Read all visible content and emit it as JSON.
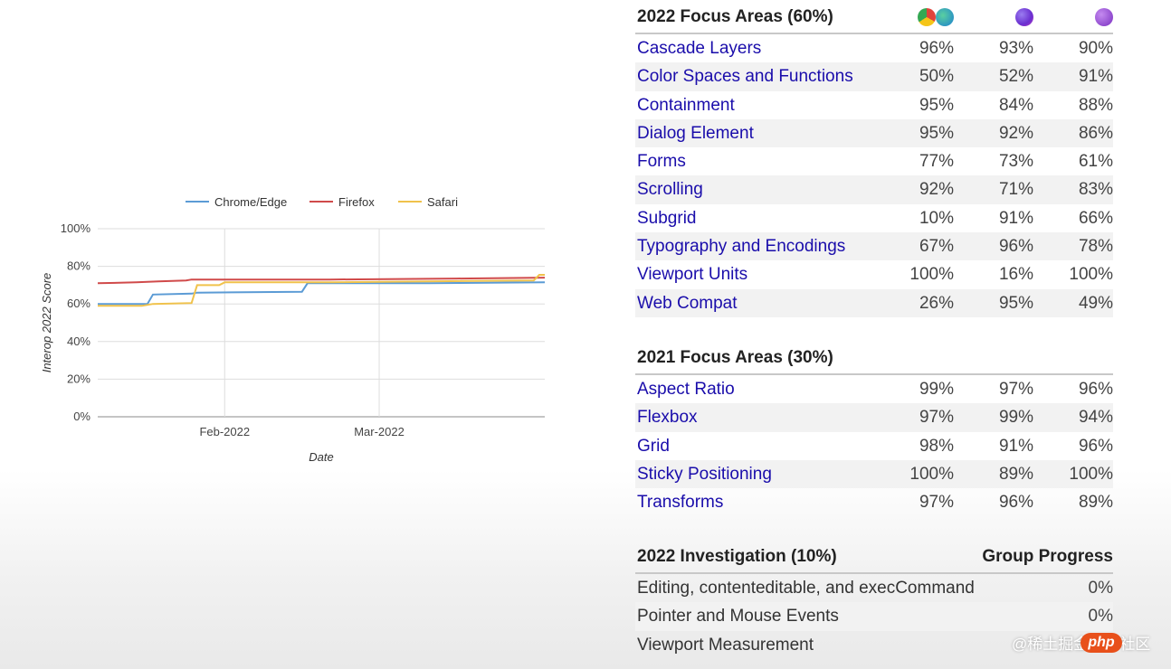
{
  "chart_data": {
    "type": "line",
    "xlabel": "Date",
    "ylabel": "Interop 2022 Score",
    "x_ticks": [
      "Feb-2022",
      "Mar-2022"
    ],
    "y_ticks": [
      "0%",
      "20%",
      "40%",
      "60%",
      "80%",
      "100%"
    ],
    "ylim": [
      0,
      100
    ],
    "grid": true,
    "legend_position": "top",
    "series": [
      {
        "name": "Chrome/Edge",
        "color": "#5b9bd5",
        "points": [
          [
            "2022-01-09",
            60
          ],
          [
            "2022-01-18",
            60
          ],
          [
            "2022-01-19",
            65
          ],
          [
            "2022-01-26",
            65.5
          ],
          [
            "2022-01-27",
            66
          ],
          [
            "2022-02-15",
            66.5
          ],
          [
            "2022-02-16",
            71
          ],
          [
            "2022-03-10",
            71
          ],
          [
            "2022-03-31",
            71.5
          ]
        ]
      },
      {
        "name": "Firefox",
        "color": "#d04a4a",
        "points": [
          [
            "2022-01-09",
            71
          ],
          [
            "2022-01-16",
            71.5
          ],
          [
            "2022-01-20",
            72
          ],
          [
            "2022-01-25",
            72.5
          ],
          [
            "2022-01-26",
            73
          ],
          [
            "2022-02-20",
            73
          ],
          [
            "2022-03-15",
            73.5
          ],
          [
            "2022-03-31",
            74
          ]
        ]
      },
      {
        "name": "Safari",
        "color": "#f0c24b",
        "points": [
          [
            "2022-01-09",
            59
          ],
          [
            "2022-01-17",
            59
          ],
          [
            "2022-01-19",
            60
          ],
          [
            "2022-01-26",
            60.5
          ],
          [
            "2022-01-27",
            70
          ],
          [
            "2022-01-31",
            70
          ],
          [
            "2022-02-01",
            71.5
          ],
          [
            "2022-02-20",
            71.5
          ],
          [
            "2022-03-10",
            72
          ],
          [
            "2022-03-29",
            72.5
          ],
          [
            "2022-03-30",
            75.5
          ],
          [
            "2022-03-31",
            75.5
          ]
        ]
      }
    ]
  },
  "sections": [
    {
      "title": "2022 Focus Areas (60%)",
      "rows": [
        {
          "name": "Cascade Layers",
          "v": [
            "96%",
            "93%",
            "90%"
          ]
        },
        {
          "name": "Color Spaces and Functions",
          "v": [
            "50%",
            "52%",
            "91%"
          ]
        },
        {
          "name": "Containment",
          "v": [
            "95%",
            "84%",
            "88%"
          ]
        },
        {
          "name": "Dialog Element",
          "v": [
            "95%",
            "92%",
            "86%"
          ]
        },
        {
          "name": "Forms",
          "v": [
            "77%",
            "73%",
            "61%"
          ]
        },
        {
          "name": "Scrolling",
          "v": [
            "92%",
            "71%",
            "83%"
          ]
        },
        {
          "name": "Subgrid",
          "v": [
            "10%",
            "91%",
            "66%"
          ]
        },
        {
          "name": "Typography and Encodings",
          "v": [
            "67%",
            "96%",
            "78%"
          ]
        },
        {
          "name": "Viewport Units",
          "v": [
            "100%",
            "16%",
            "100%"
          ]
        },
        {
          "name": "Web Compat",
          "v": [
            "26%",
            "95%",
            "49%"
          ]
        }
      ]
    },
    {
      "title": "2021 Focus Areas (30%)",
      "rows": [
        {
          "name": "Aspect Ratio",
          "v": [
            "99%",
            "97%",
            "96%"
          ]
        },
        {
          "name": "Flexbox",
          "v": [
            "97%",
            "99%",
            "94%"
          ]
        },
        {
          "name": "Grid",
          "v": [
            "98%",
            "91%",
            "96%"
          ]
        },
        {
          "name": "Sticky Positioning",
          "v": [
            "100%",
            "89%",
            "100%"
          ]
        },
        {
          "name": "Transforms",
          "v": [
            "97%",
            "96%",
            "89%"
          ]
        }
      ]
    },
    {
      "title": "2022 Investigation (10%)",
      "right_header": "Group Progress",
      "rows": [
        {
          "name": "Editing, contenteditable, and execCommand",
          "progress": "0%"
        },
        {
          "name": "Pointer and Mouse Events",
          "progress": "0%"
        },
        {
          "name": "Viewport Measurement",
          "progress": ""
        }
      ]
    }
  ],
  "browser_icons": [
    {
      "icon": "chrome-edge-icon",
      "colors": [
        "#e0433a",
        "#2aa7d8"
      ]
    },
    {
      "icon": "firefox-icon",
      "color": "#7a4fe0"
    },
    {
      "icon": "safari-tp-icon",
      "color": "#8a3fd0"
    }
  ],
  "watermark": "@稀土掘金技术社区",
  "badge": "php"
}
